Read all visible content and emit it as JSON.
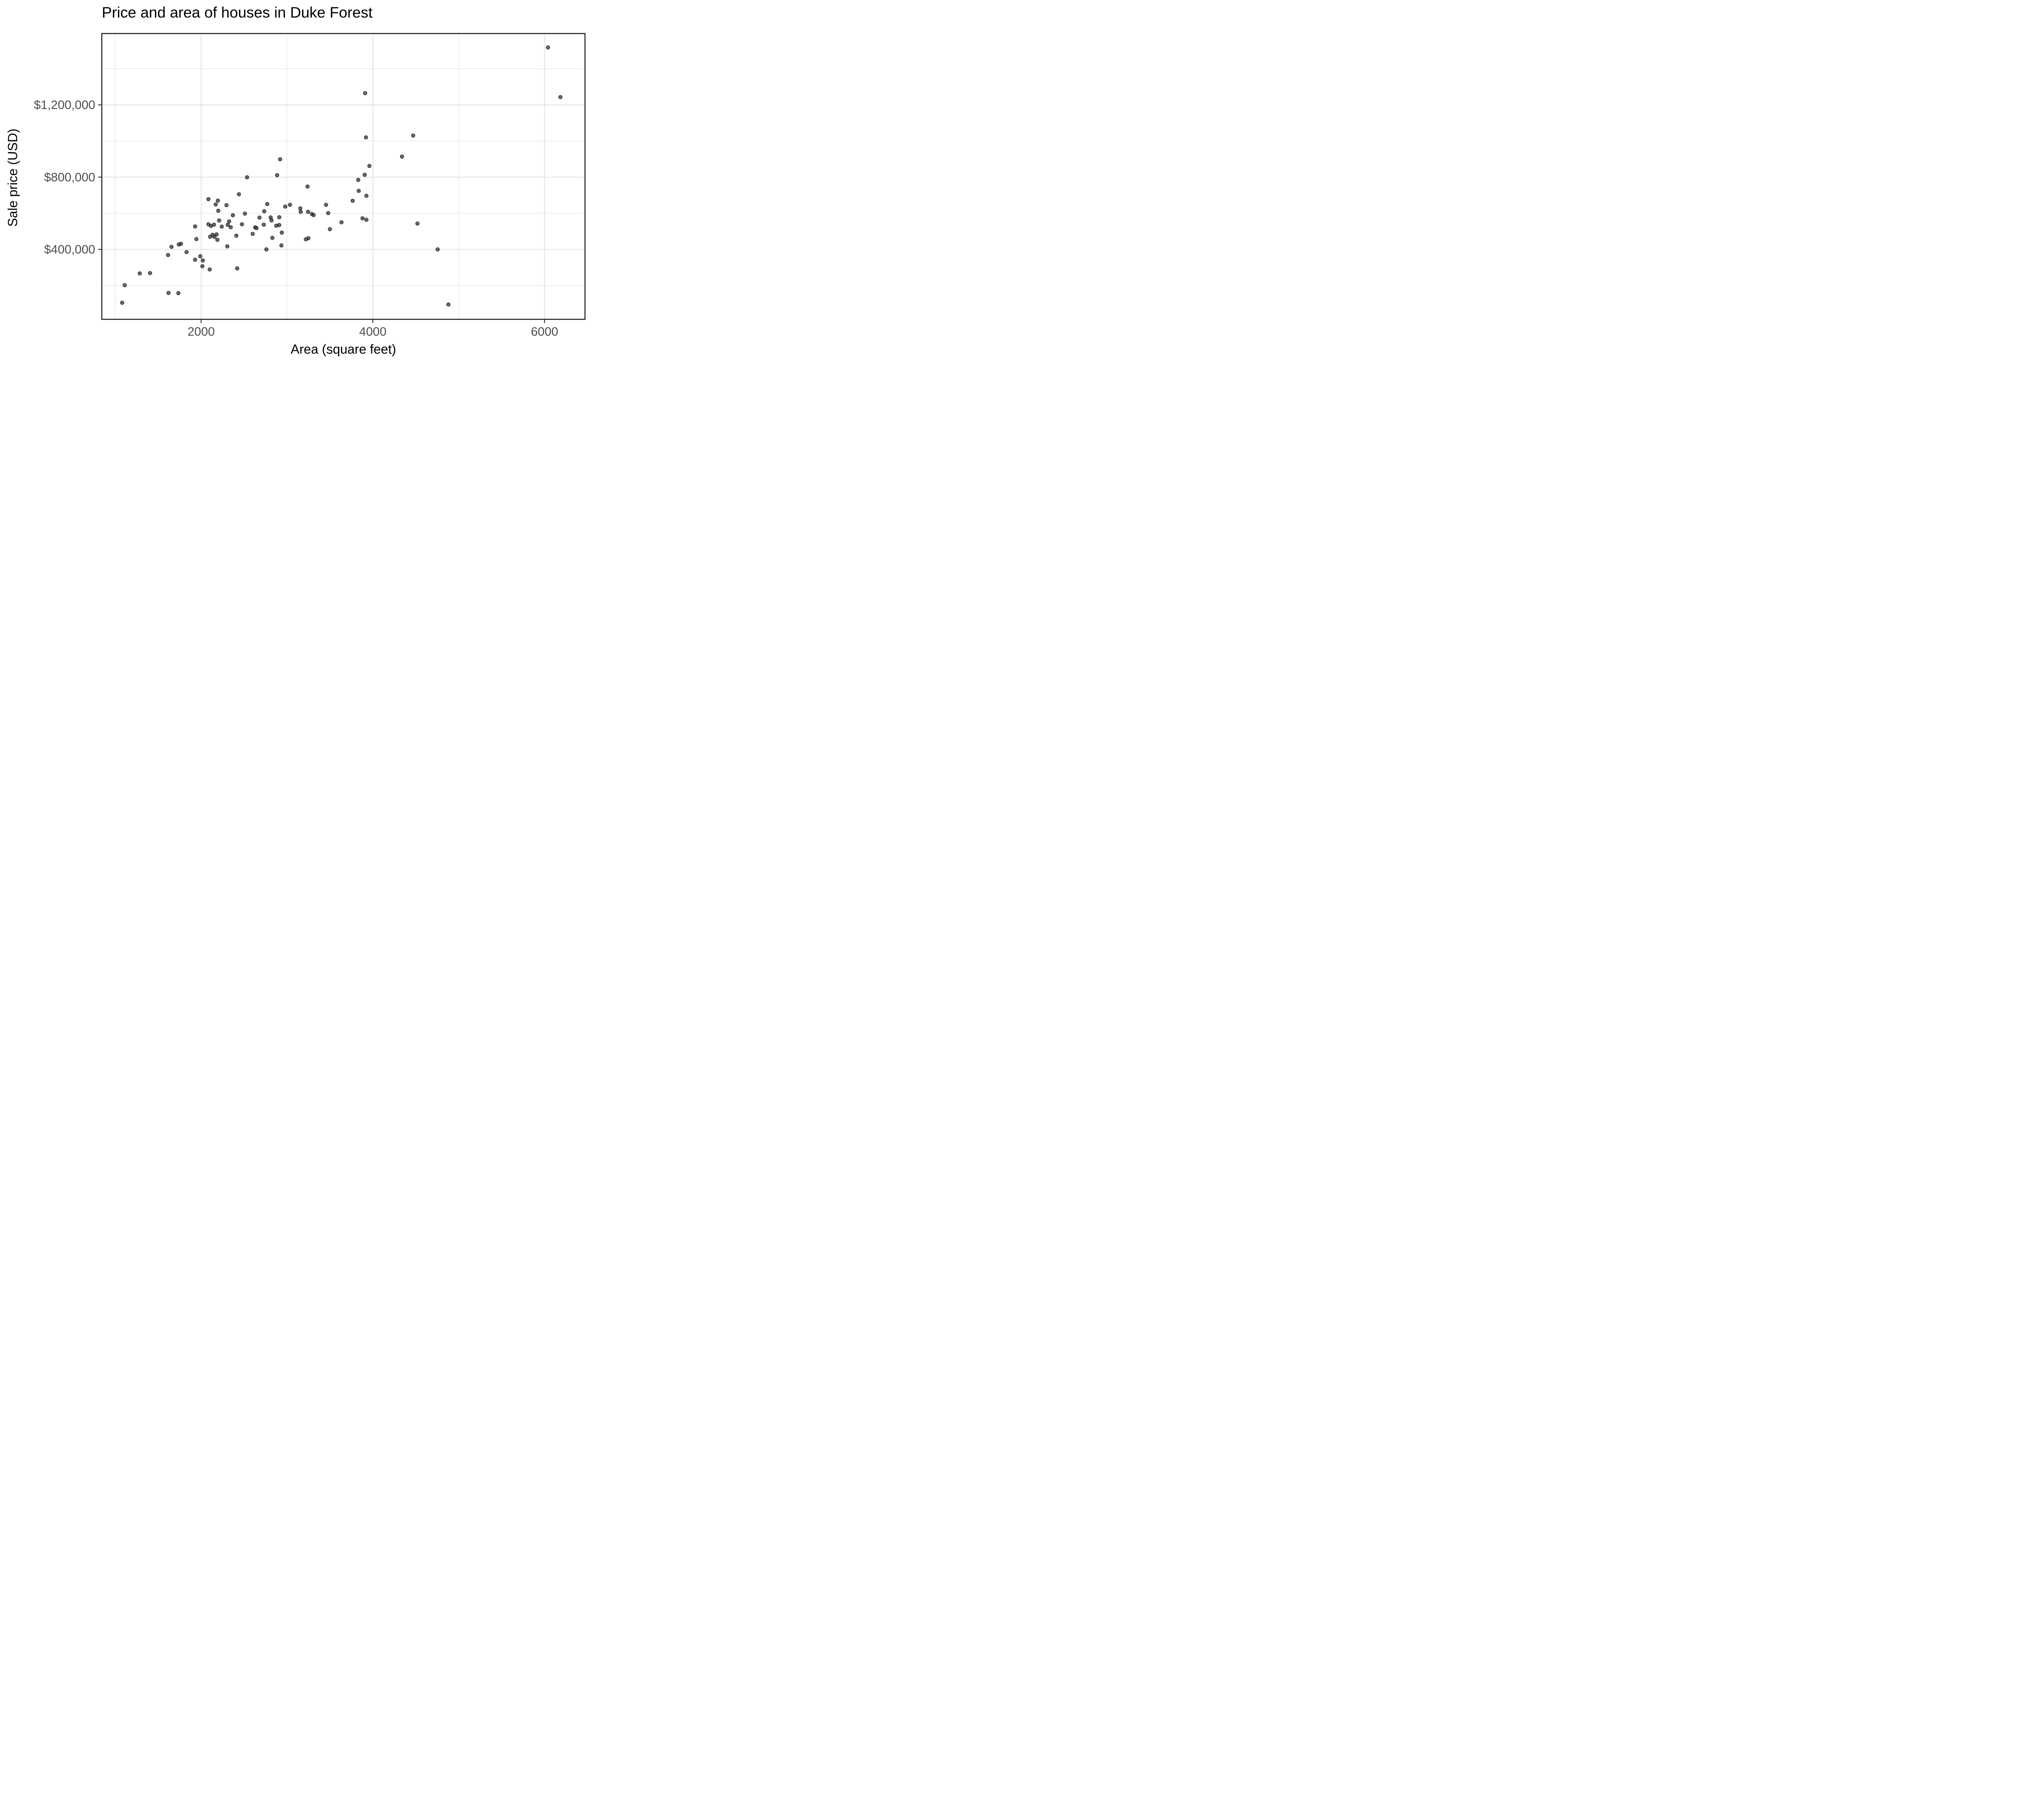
{
  "chart": {
    "title": "Price and area of houses in Duke Forest",
    "x_title": "Area (square feet)",
    "y_title": "Sale price (USD)"
  },
  "chart_data": {
    "type": "scatter",
    "title": "Price and area of houses in Duke Forest",
    "xlabel": "Area (square feet)",
    "ylabel": "Sale price (USD)",
    "x_ticks": [
      2000,
      4000,
      6000
    ],
    "x_tick_labels": [
      "2000",
      "4000",
      "6000"
    ],
    "x_minor_ticks": [
      1000,
      3000,
      5000
    ],
    "y_ticks": [
      400000,
      800000,
      1200000
    ],
    "y_tick_labels": [
      "$400,000",
      "$800,000",
      "$1,200,000"
    ],
    "y_minor_ticks": [
      200000,
      600000,
      1000000,
      1400000
    ],
    "xlim": [
      843,
      6471
    ],
    "ylim": [
      13000,
      1595000
    ],
    "grid": true,
    "legend": false,
    "point_color": "#404040",
    "point_edge_color": "#000000",
    "grid_color": "#e7e7e7",
    "panel_border_color": "#1a1a1a",
    "tick_label_color": "#4d4d4d",
    "points": [
      [
        6040,
        1518000
      ],
      [
        6185,
        1243000
      ],
      [
        3910,
        1265000
      ],
      [
        3920,
        1020000
      ],
      [
        4470,
        1030000
      ],
      [
        4340,
        914000
      ],
      [
        2920,
        899000
      ],
      [
        3960,
        862000
      ],
      [
        2885,
        811000
      ],
      [
        3905,
        813000
      ],
      [
        2535,
        799000
      ],
      [
        3830,
        785000
      ],
      [
        3240,
        748000
      ],
      [
        3835,
        724000
      ],
      [
        2440,
        705000
      ],
      [
        3925,
        697000
      ],
      [
        2085,
        678000
      ],
      [
        2195,
        670000
      ],
      [
        3765,
        669000
      ],
      [
        2170,
        649000
      ],
      [
        2295,
        645000
      ],
      [
        3035,
        647000
      ],
      [
        3455,
        647000
      ],
      [
        2770,
        651000
      ],
      [
        2980,
        637000
      ],
      [
        3155,
        627000
      ],
      [
        2200,
        614000
      ],
      [
        2735,
        611000
      ],
      [
        3160,
        608000
      ],
      [
        3245,
        608000
      ],
      [
        3480,
        601000
      ],
      [
        2510,
        598000
      ],
      [
        3290,
        596000
      ],
      [
        3310,
        590000
      ],
      [
        2370,
        589000
      ],
      [
        2680,
        576000
      ],
      [
        2810,
        577000
      ],
      [
        2910,
        578000
      ],
      [
        3880,
        572000
      ],
      [
        3925,
        564000
      ],
      [
        2820,
        561000
      ],
      [
        2210,
        560000
      ],
      [
        2325,
        555000
      ],
      [
        3635,
        550000
      ],
      [
        4520,
        543000
      ],
      [
        1930,
        527000
      ],
      [
        2085,
        539000
      ],
      [
        2115,
        530000
      ],
      [
        2150,
        537000
      ],
      [
        2240,
        526000
      ],
      [
        2310,
        536000
      ],
      [
        2345,
        523000
      ],
      [
        2475,
        539000
      ],
      [
        2630,
        522000
      ],
      [
        2645,
        518000
      ],
      [
        2730,
        537000
      ],
      [
        2875,
        531000
      ],
      [
        2910,
        535000
      ],
      [
        3500,
        512000
      ],
      [
        2940,
        493000
      ],
      [
        2600,
        486000
      ],
      [
        2410,
        476000
      ],
      [
        2105,
        470000
      ],
      [
        2135,
        481000
      ],
      [
        2155,
        469000
      ],
      [
        2180,
        483000
      ],
      [
        2830,
        464000
      ],
      [
        3250,
        462000
      ],
      [
        3220,
        456000
      ],
      [
        2190,
        453000
      ],
      [
        1945,
        457000
      ],
      [
        1765,
        431000
      ],
      [
        1740,
        427000
      ],
      [
        1655,
        414000
      ],
      [
        2305,
        417000
      ],
      [
        2935,
        422000
      ],
      [
        2760,
        400000
      ],
      [
        4755,
        400000
      ],
      [
        1830,
        385000
      ],
      [
        1615,
        369000
      ],
      [
        1990,
        362000
      ],
      [
        1930,
        343000
      ],
      [
        2020,
        339000
      ],
      [
        2015,
        307000
      ],
      [
        2100,
        289000
      ],
      [
        2420,
        295000
      ],
      [
        1285,
        267000
      ],
      [
        1405,
        269000
      ],
      [
        1110,
        202000
      ],
      [
        1620,
        159000
      ],
      [
        1735,
        158000
      ],
      [
        1080,
        105000
      ],
      [
        4880,
        95000
      ]
    ]
  }
}
